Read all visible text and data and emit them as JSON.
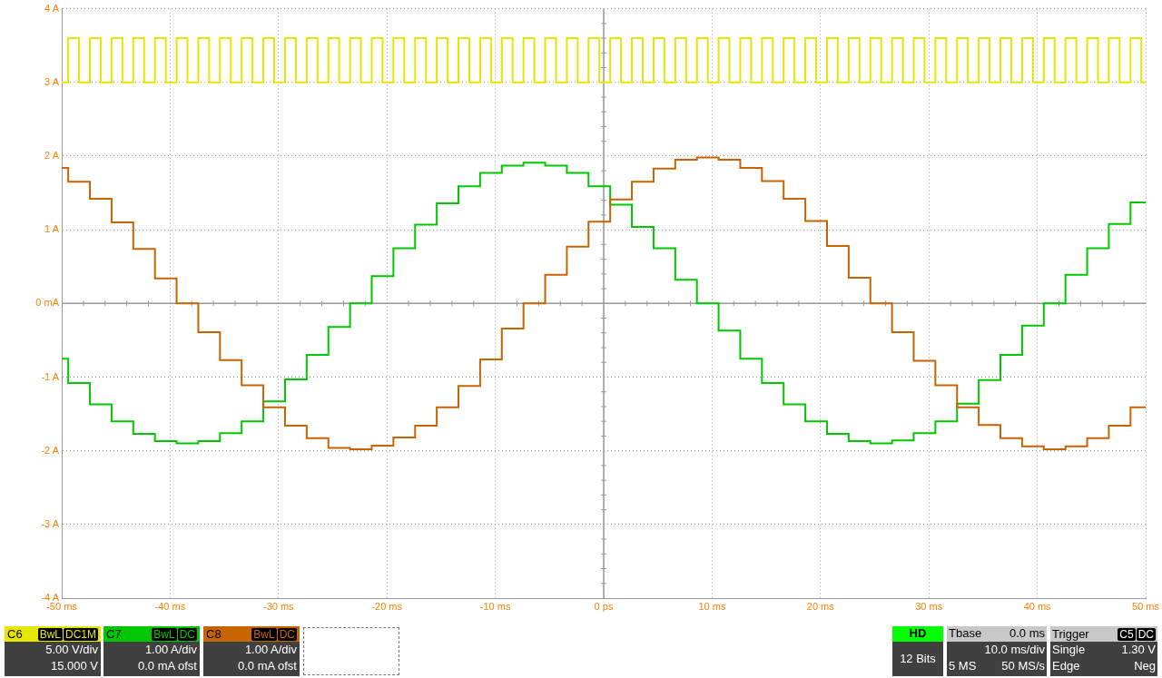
{
  "chart_data": {
    "type": "step",
    "xlim": [
      -50,
      50
    ],
    "xticks": [
      {
        "value": -50,
        "label": "-50 ms"
      },
      {
        "value": -40,
        "label": "-40 ms"
      },
      {
        "value": -30,
        "label": "-30 ms"
      },
      {
        "value": -20,
        "label": "-20 ms"
      },
      {
        "value": -10,
        "label": "-10 ms"
      },
      {
        "value": 0,
        "label": "0 ps"
      },
      {
        "value": 10,
        "label": "10 ms"
      },
      {
        "value": 20,
        "label": "20 ms"
      },
      {
        "value": 30,
        "label": "30 ms"
      },
      {
        "value": 40,
        "label": "40 ms"
      },
      {
        "value": 50,
        "label": "50 ms"
      }
    ],
    "ylim": [
      -4,
      4
    ],
    "yticks": [
      {
        "value": -4,
        "label": "-4 A"
      },
      {
        "value": -3,
        "label": "-3 A"
      },
      {
        "value": -2,
        "label": "-2 A"
      },
      {
        "value": -1,
        "label": "-1 A"
      },
      {
        "value": 0,
        "label": "0 mA"
      },
      {
        "value": 1,
        "label": "1 A"
      },
      {
        "value": 2,
        "label": "2 A"
      },
      {
        "value": 3,
        "label": "3 A"
      },
      {
        "value": 4,
        "label": "4 A"
      }
    ],
    "grid": true,
    "legend": "bottom",
    "series": [
      {
        "name": "C6",
        "color": "#e6e600",
        "x": [
          -50,
          -49.4,
          -48.4,
          -47.4,
          -46.4,
          -45.4,
          -44.4,
          -43.4,
          -42.4,
          -41.4,
          -40.4,
          -39.4,
          -38.4,
          -37.4,
          -36.4,
          -35.4,
          -34.4,
          -33.4,
          -32.4,
          -31.4,
          -30.4,
          -29.4,
          -28.4,
          -27.4,
          -26.4,
          -25.4,
          -24.4,
          -23.4,
          -22.4,
          -21.4,
          -20.4,
          -19.4,
          -18.4,
          -17.4,
          -16.4,
          -15.4,
          -14.4,
          -13.4,
          -12.4,
          -11.4,
          -10.4,
          -9.4,
          -8.4,
          -7.4,
          -6.4,
          -5.4,
          -4.4,
          -3.4,
          -2.4,
          -1.4,
          -0.4,
          0.6,
          1.6,
          2.6,
          3.6,
          4.6,
          5.6,
          6.6,
          7.6,
          8.6,
          9.6,
          10.6,
          11.6,
          12.6,
          13.6,
          14.6,
          15.6,
          16.6,
          17.6,
          18.6,
          19.6,
          20.6,
          21.6,
          22.6,
          23.6,
          24.6,
          25.6,
          26.6,
          27.6,
          28.6,
          29.6,
          30.6,
          31.6,
          32.6,
          33.6,
          34.6,
          35.6,
          36.6,
          37.6,
          38.6,
          39.6,
          40.6,
          41.6,
          42.6,
          43.6,
          44.6,
          45.6,
          46.6,
          47.6,
          48.6,
          49.6,
          50
        ],
        "values": [
          3,
          3.6,
          3,
          3.6,
          3,
          3.6,
          3,
          3.6,
          3,
          3.6,
          3,
          3.6,
          3,
          3.6,
          3,
          3.6,
          3,
          3.6,
          3,
          3.6,
          3,
          3.6,
          3,
          3.6,
          3,
          3.6,
          3,
          3.6,
          3,
          3.6,
          3,
          3.6,
          3,
          3.6,
          3,
          3.6,
          3,
          3.6,
          3,
          3.6,
          3,
          3.6,
          3,
          3.6,
          3,
          3.6,
          3,
          3.6,
          3,
          3.6,
          3,
          3.6,
          3,
          3.6,
          3,
          3.6,
          3,
          3.6,
          3,
          3.6,
          3,
          3.6,
          3,
          3.6,
          3,
          3.6,
          3,
          3.6,
          3,
          3.6,
          3,
          3.6,
          3,
          3.6,
          3,
          3.6,
          3,
          3.6,
          3,
          3.6,
          3,
          3.6,
          3,
          3.6,
          3,
          3.6,
          3,
          3.6,
          3,
          3.6,
          3,
          3.6,
          3,
          3.6,
          3,
          3.6,
          3,
          3.6,
          3,
          3.6,
          3,
          3
        ]
      },
      {
        "name": "C7",
        "color": "#00c800",
        "x": [
          -50,
          -49.4,
          -47.4,
          -45.4,
          -43.4,
          -41.4,
          -39.4,
          -37.4,
          -35.4,
          -33.4,
          -31.4,
          -29.4,
          -27.4,
          -25.4,
          -23.4,
          -21.4,
          -19.4,
          -17.4,
          -15.4,
          -13.4,
          -11.4,
          -9.4,
          -7.4,
          -5.4,
          -3.4,
          -1.4,
          0.6,
          2.6,
          4.6,
          6.6,
          8.6,
          10.6,
          12.6,
          14.6,
          16.6,
          18.6,
          20.6,
          22.6,
          24.6,
          26.6,
          28.6,
          30.6,
          32.6,
          34.6,
          36.6,
          38.6,
          40.6,
          42.6,
          44.6,
          46.6,
          48.6,
          50
        ],
        "values": [
          -0.75,
          -1.08,
          -1.37,
          -1.6,
          -1.77,
          -1.87,
          -1.9,
          -1.87,
          -1.76,
          -1.6,
          -1.33,
          -1.03,
          -0.7,
          -0.32,
          0,
          0.37,
          0.75,
          1.07,
          1.36,
          1.59,
          1.77,
          1.87,
          1.91,
          1.87,
          1.77,
          1.59,
          1.34,
          1.04,
          0.75,
          0.32,
          0,
          -0.37,
          -0.75,
          -1.08,
          -1.37,
          -1.6,
          -1.77,
          -1.87,
          -1.9,
          -1.86,
          -1.76,
          -1.6,
          -1.36,
          -1.04,
          -0.7,
          -0.3,
          0,
          0.39,
          0.75,
          1.08,
          1.37,
          1.37
        ]
      },
      {
        "name": "C8",
        "color": "#c86400",
        "x": [
          -50,
          -49.4,
          -47.4,
          -45.4,
          -43.4,
          -41.4,
          -39.4,
          -37.4,
          -35.4,
          -33.4,
          -31.4,
          -29.4,
          -27.4,
          -25.4,
          -23.4,
          -21.4,
          -19.4,
          -17.4,
          -15.4,
          -13.4,
          -11.4,
          -9.4,
          -7.4,
          -5.4,
          -3.4,
          -1.4,
          0.6,
          2.6,
          4.6,
          6.6,
          8.6,
          10.6,
          12.6,
          14.6,
          16.6,
          18.6,
          20.6,
          22.6,
          24.6,
          26.6,
          28.6,
          30.6,
          32.6,
          34.6,
          36.6,
          38.6,
          40.6,
          42.6,
          44.6,
          46.6,
          48.6,
          50
        ],
        "values": [
          1.84,
          1.65,
          1.42,
          1.1,
          0.74,
          0.34,
          0,
          -0.39,
          -0.77,
          -1.11,
          -1.41,
          -1.66,
          -1.83,
          -1.96,
          -1.98,
          -1.93,
          -1.82,
          -1.66,
          -1.41,
          -1.12,
          -0.76,
          -0.34,
          0,
          0.39,
          0.77,
          1.11,
          1.41,
          1.65,
          1.83,
          1.95,
          1.98,
          1.95,
          1.84,
          1.66,
          1.42,
          1.12,
          0.78,
          0.35,
          0,
          -0.39,
          -0.78,
          -1.11,
          -1.41,
          -1.65,
          -1.83,
          -1.94,
          -1.98,
          -1.94,
          -1.83,
          -1.66,
          -1.41,
          -1.41
        ]
      }
    ],
    "annotations": [
      "BwL",
      "DC1M",
      "5.00 V/div",
      "15.000 V",
      "BwL",
      "DC",
      "1.00 A/div",
      "0.0 mA ofst",
      "BwL",
      "DC",
      "1.00 A/div",
      "0.0 mA ofst",
      "HD",
      "12 Bits",
      "Tbase",
      "0.0 ms",
      "10.0 ms/div",
      "5 MS",
      "50 MS/s",
      "Trigger",
      "C5",
      "DC",
      "Single",
      "1.30 V",
      "Edge",
      "Neg"
    ]
  }
}
